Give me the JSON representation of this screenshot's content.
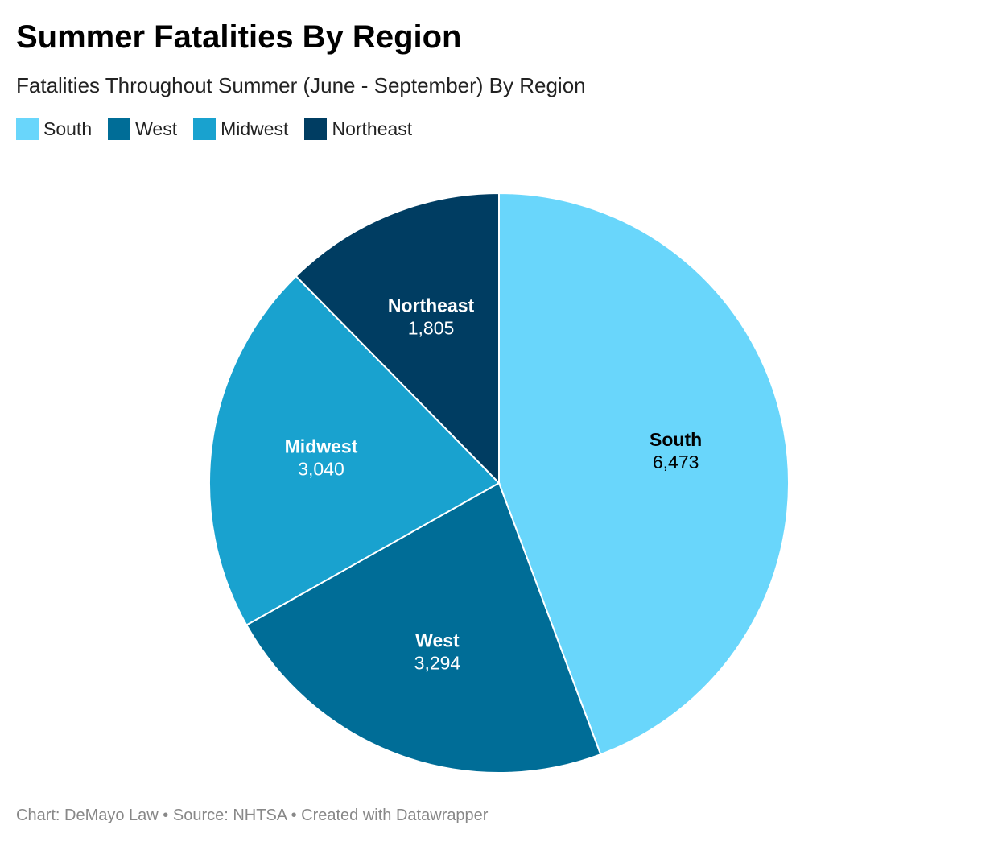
{
  "title": "Summer Fatalities By Region",
  "subtitle": "Fatalities Throughout Summer (June - September) By Region",
  "footer": "Chart: DeMayo Law • Source: NHTSA • Created with Datawrapper",
  "chart_data": {
    "type": "pie",
    "title": "Summer Fatalities By Region",
    "subtitle": "Fatalities Throughout Summer (June - September) By Region",
    "categories": [
      "South",
      "West",
      "Midwest",
      "Northeast"
    ],
    "values": [
      6473,
      3294,
      3040,
      1805
    ],
    "value_labels": [
      "6,473",
      "3,294",
      "3,040",
      "1,805"
    ],
    "colors": [
      "#69d6fb",
      "#006d97",
      "#19a2cf",
      "#003d62"
    ],
    "label_colors": [
      "#000000",
      "#ffffff",
      "#ffffff",
      "#ffffff"
    ],
    "legend": {
      "placement": "top-left",
      "items": [
        {
          "label": "South",
          "color": "#69d6fb"
        },
        {
          "label": "West",
          "color": "#006d97"
        },
        {
          "label": "Midwest",
          "color": "#19a2cf"
        },
        {
          "label": "Northeast",
          "color": "#003d62"
        }
      ]
    }
  }
}
